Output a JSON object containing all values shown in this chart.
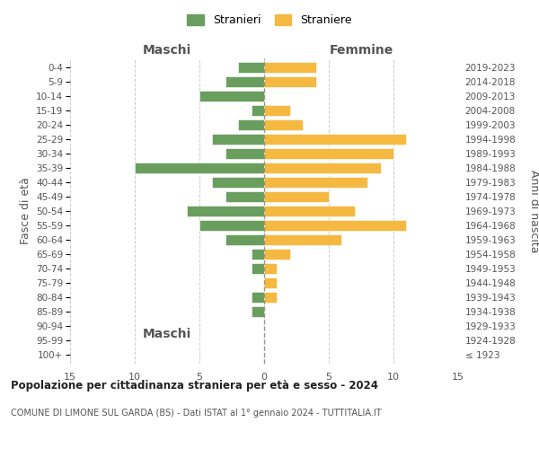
{
  "age_groups": [
    "100+",
    "95-99",
    "90-94",
    "85-89",
    "80-84",
    "75-79",
    "70-74",
    "65-69",
    "60-64",
    "55-59",
    "50-54",
    "45-49",
    "40-44",
    "35-39",
    "30-34",
    "25-29",
    "20-24",
    "15-19",
    "10-14",
    "5-9",
    "0-4"
  ],
  "birth_years": [
    "≤ 1923",
    "1924-1928",
    "1929-1933",
    "1934-1938",
    "1939-1943",
    "1944-1948",
    "1949-1953",
    "1954-1958",
    "1959-1963",
    "1964-1968",
    "1969-1973",
    "1974-1978",
    "1979-1983",
    "1984-1988",
    "1989-1993",
    "1994-1998",
    "1999-2003",
    "2004-2008",
    "2009-2013",
    "2014-2018",
    "2019-2023"
  ],
  "maschi": [
    0,
    0,
    0,
    1,
    1,
    0,
    1,
    1,
    3,
    5,
    6,
    3,
    4,
    10,
    3,
    4,
    2,
    1,
    5,
    3,
    2
  ],
  "femmine": [
    0,
    0,
    0,
    0,
    1,
    1,
    1,
    2,
    6,
    11,
    7,
    5,
    8,
    9,
    10,
    11,
    3,
    2,
    0,
    4,
    4
  ],
  "color_maschi": "#6a9e5f",
  "color_femmine": "#f5b942",
  "title": "Popolazione per cittadinanza straniera per età e sesso - 2024",
  "subtitle": "COMUNE DI LIMONE SUL GARDA (BS) - Dati ISTAT al 1° gennaio 2024 - TUTTITALIA.IT",
  "legend_maschi": "Stranieri",
  "legend_femmine": "Straniere",
  "xlabel_left": "Maschi",
  "xlabel_right": "Femmine",
  "ylabel_left": "Fasce di età",
  "ylabel_right": "Anni di nascita",
  "xlim": 15,
  "background_color": "#ffffff",
  "grid_color": "#cccccc",
  "text_color": "#555555",
  "title_color": "#222222"
}
